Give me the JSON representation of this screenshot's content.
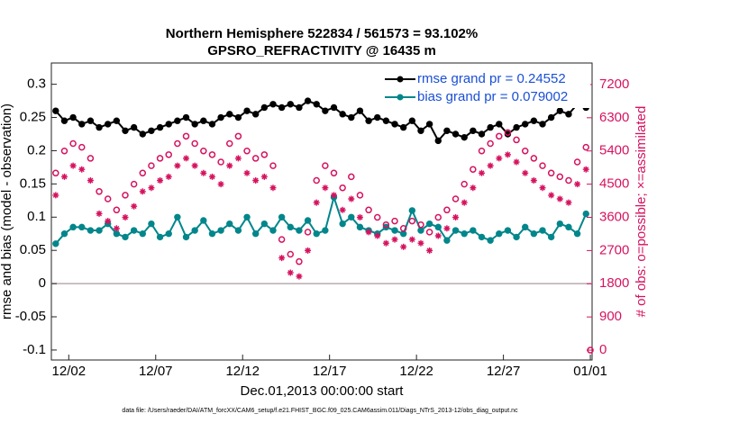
{
  "chart_data": {
    "type": "line",
    "title": "Northern Hemisphere 522834 / 561573 = 93.102%",
    "subtitle": "GPSRO_REFRACTIVITY @ 16435 m",
    "x_label": "Dec.01,2013 00:00:00 start",
    "y_label": "rmse and bias (model - observation)",
    "y2_label": "# of obs: o=possible; ×=assimilated",
    "footnote": "data file: /Users/raeder/DAI/ATM_forcXX/CAM6_setup/f.e21.FHIST_BGC.f09_025.CAM6assim.011/Diags_NTrS_2013-12/obs_diag_output.nc",
    "x": [
      0.25,
      0.75,
      1.25,
      1.75,
      2.25,
      2.75,
      3.25,
      3.75,
      4.25,
      4.75,
      5.25,
      5.75,
      6.25,
      6.75,
      7.25,
      7.75,
      8.25,
      8.75,
      9.25,
      9.75,
      10.25,
      10.75,
      11.25,
      11.75,
      12.25,
      12.75,
      13.25,
      13.75,
      14.25,
      14.75,
      15.25,
      15.75,
      16.25,
      16.75,
      17.25,
      17.75,
      18.25,
      18.75,
      19.25,
      19.75,
      20.25,
      20.75,
      21.25,
      21.75,
      22.25,
      22.75,
      23.25,
      23.75,
      24.25,
      24.75,
      25.25,
      25.75,
      26.25,
      26.75,
      27.25,
      27.75,
      28.25,
      28.75,
      29.25,
      29.75,
      30.25,
      30.75,
      31
    ],
    "xlim": [
      0,
      31.1
    ],
    "xticks": [
      {
        "value": 1,
        "label": "12/02"
      },
      {
        "value": 6,
        "label": "12/07"
      },
      {
        "value": 11,
        "label": "12/12"
      },
      {
        "value": 16,
        "label": "12/17"
      },
      {
        "value": 21,
        "label": "12/22"
      },
      {
        "value": 26,
        "label": "12/27"
      },
      {
        "value": 31,
        "label": "01/01"
      }
    ],
    "ylim": [
      -0.115,
      0.332
    ],
    "yticks": [
      -0.1,
      -0.05,
      0,
      0.05,
      0.1,
      0.15,
      0.2,
      0.25,
      0.3
    ],
    "y2lim": [
      -267,
      7784
    ],
    "y2ticks": [
      0,
      900,
      1800,
      2700,
      3600,
      4500,
      5400,
      6300,
      7200
    ],
    "legend": "northeast",
    "series": [
      {
        "name": "rmse grand pr = 0.24552",
        "color": "#000000",
        "marker": "o",
        "values": [
          0.26,
          0.245,
          0.25,
          0.24,
          0.245,
          0.235,
          0.24,
          0.245,
          0.23,
          0.235,
          0.225,
          0.23,
          0.235,
          0.24,
          0.245,
          0.25,
          0.24,
          0.245,
          0.24,
          0.25,
          0.255,
          0.25,
          0.26,
          0.255,
          0.265,
          0.27,
          0.265,
          0.27,
          0.265,
          0.275,
          0.27,
          0.26,
          0.265,
          0.255,
          0.25,
          0.26,
          0.245,
          0.25,
          0.245,
          0.24,
          0.235,
          0.245,
          0.23,
          0.24,
          0.215,
          0.23,
          0.225,
          0.22,
          0.23,
          0.225,
          0.235,
          0.24,
          0.225,
          0.235,
          0.24,
          0.245,
          0.24,
          0.25,
          0.26,
          0.255,
          0.27,
          0.265,
          null
        ]
      },
      {
        "name": "bias grand pr = 0.079002",
        "color": "#00868b",
        "marker": "o",
        "values": [
          0.06,
          0.075,
          0.085,
          0.085,
          0.08,
          0.08,
          0.09,
          0.075,
          0.07,
          0.08,
          0.075,
          0.09,
          0.07,
          0.075,
          0.1,
          0.07,
          0.08,
          0.095,
          0.075,
          0.08,
          0.09,
          0.08,
          0.1,
          0.075,
          0.09,
          0.08,
          0.1,
          0.085,
          0.08,
          0.095,
          0.075,
          0.08,
          0.13,
          0.09,
          0.1,
          0.085,
          0.08,
          0.075,
          0.085,
          0.08,
          0.075,
          0.11,
          0.08,
          0.09,
          0.085,
          0.065,
          0.08,
          0.075,
          0.08,
          0.07,
          0.065,
          0.075,
          0.08,
          0.07,
          0.085,
          0.075,
          0.08,
          0.07,
          0.09,
          0.085,
          0.075,
          0.105,
          null
        ]
      },
      {
        "color": "#d6125f",
        "marker": "circle-open",
        "axis": "y2",
        "values": [
          4800,
          5400,
          5600,
          5500,
          5200,
          4300,
          4100,
          3800,
          4200,
          4500,
          4800,
          5000,
          5200,
          5300,
          5600,
          5800,
          5600,
          5400,
          5300,
          5100,
          5600,
          5800,
          5400,
          5200,
          5300,
          5000,
          3000,
          2600,
          2400,
          3200,
          4600,
          5000,
          4800,
          4400,
          4700,
          4200,
          3800,
          3600,
          3400,
          3500,
          3300,
          3500,
          3400,
          3200,
          3600,
          3800,
          4100,
          4500,
          4900,
          5400,
          5600,
          5800,
          5900,
          5700,
          5400,
          5200,
          5000,
          4800,
          4700,
          4600,
          5100,
          5500,
          0
        ]
      },
      {
        "color": "#d6125f",
        "marker": "asterisk",
        "axis": "y2",
        "values": [
          4200,
          4700,
          5000,
          4900,
          4600,
          3700,
          3500,
          3300,
          3600,
          3900,
          4300,
          4400,
          4600,
          4700,
          5000,
          5200,
          5000,
          4800,
          4700,
          4500,
          5000,
          5200,
          4800,
          4600,
          4700,
          4400,
          2500,
          2100,
          2000,
          2700,
          4000,
          4400,
          4200,
          3800,
          4100,
          3600,
          3200,
          3100,
          2900,
          3000,
          2800,
          3000,
          2900,
          2700,
          3100,
          3300,
          3600,
          4000,
          4400,
          4800,
          5000,
          5200,
          5300,
          5100,
          4800,
          4600,
          4400,
          4200,
          4100,
          4000,
          4500,
          4900,
          null
        ]
      }
    ]
  }
}
